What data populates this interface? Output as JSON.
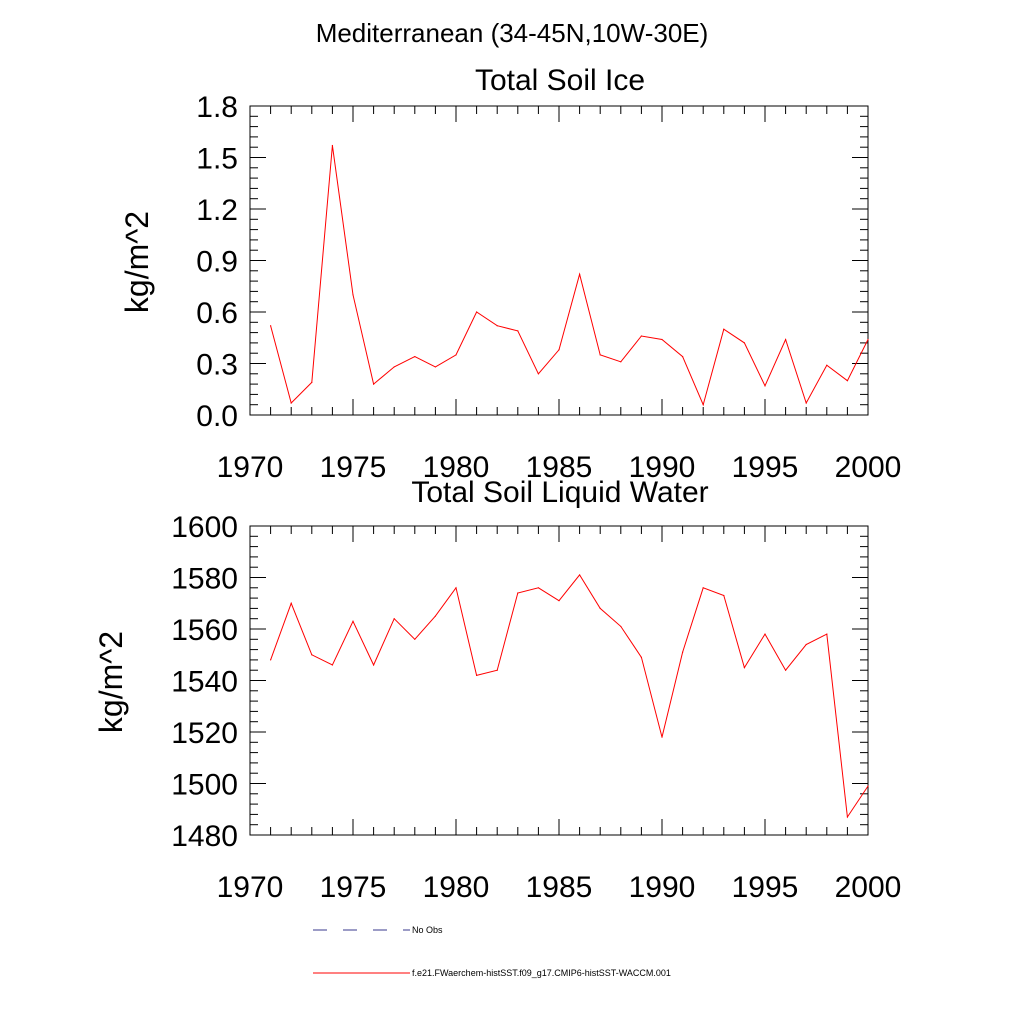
{
  "page_title": "Mediterranean (34-45N,10W-30E)",
  "chart_data": [
    {
      "type": "line",
      "title": "Total Soil Ice",
      "ylabel": "kg/m^2",
      "xlabel": "",
      "xlim": [
        1970,
        2000
      ],
      "ylim": [
        0.0,
        1.8
      ],
      "x_ticks": [
        1970,
        1975,
        1980,
        1985,
        1990,
        1995,
        2000
      ],
      "x_tick_labels": [
        "1970",
        "1975",
        "1980",
        "1985",
        "1990",
        "1995",
        "2000"
      ],
      "y_ticks": [
        0.0,
        0.3,
        0.6,
        0.9,
        1.2,
        1.5,
        1.8
      ],
      "y_tick_labels": [
        "0.0",
        "0.3",
        "0.6",
        "0.9",
        "1.2",
        "1.5",
        "1.8"
      ],
      "x": [
        1971,
        1972,
        1973,
        1974,
        1975,
        1976,
        1977,
        1978,
        1979,
        1980,
        1981,
        1982,
        1983,
        1984,
        1985,
        1986,
        1987,
        1988,
        1989,
        1990,
        1991,
        1992,
        1993,
        1994,
        1995,
        1996,
        1997,
        1998,
        1999,
        2000
      ],
      "series": [
        {
          "name": "f.e21.FWaerchem-histSST.f09_g17.CMIP6-histSST-WACCM.001",
          "color": "#ff0000",
          "values": [
            0.52,
            0.07,
            0.19,
            1.57,
            0.7,
            0.18,
            0.28,
            0.34,
            0.28,
            0.35,
            0.6,
            0.52,
            0.49,
            0.24,
            0.38,
            0.82,
            0.35,
            0.31,
            0.46,
            0.44,
            0.34,
            0.06,
            0.5,
            0.42,
            0.17,
            0.44,
            0.07,
            0.29,
            0.2,
            0.44
          ]
        }
      ]
    },
    {
      "type": "line",
      "title": "Total Soil Liquid Water",
      "ylabel": "kg/m^2",
      "xlabel": "",
      "xlim": [
        1970,
        2000
      ],
      "ylim": [
        1480,
        1600
      ],
      "x_ticks": [
        1970,
        1975,
        1980,
        1985,
        1990,
        1995,
        2000
      ],
      "x_tick_labels": [
        "1970",
        "1975",
        "1980",
        "1985",
        "1990",
        "1995",
        "2000"
      ],
      "y_ticks": [
        1480,
        1500,
        1520,
        1540,
        1560,
        1580,
        1600
      ],
      "y_tick_labels": [
        "1480",
        "1500",
        "1520",
        "1540",
        "1560",
        "1580",
        "1600"
      ],
      "x": [
        1971,
        1972,
        1973,
        1974,
        1975,
        1976,
        1977,
        1978,
        1979,
        1980,
        1981,
        1982,
        1983,
        1984,
        1985,
        1986,
        1987,
        1988,
        1989,
        1990,
        1991,
        1992,
        1993,
        1994,
        1995,
        1996,
        1997,
        1998,
        1999,
        2000
      ],
      "series": [
        {
          "name": "f.e21.FWaerchem-histSST.f09_g17.CMIP6-histSST-WACCM.001",
          "color": "#ff0000",
          "values": [
            1548,
            1570,
            1550,
            1546,
            1563,
            1546,
            1564,
            1556,
            1565,
            1576,
            1542,
            1544,
            1574,
            1576,
            1571,
            1581,
            1568,
            1561,
            1549,
            1518,
            1551,
            1576,
            1573,
            1545,
            1558,
            1544,
            1554,
            1558,
            1487,
            1499
          ]
        }
      ]
    }
  ],
  "legend": [
    {
      "label": "No Obs",
      "color": "#3a3a8c",
      "style": "dashed"
    },
    {
      "label": "f.e21.FWaerchem-histSST.f09_g17.CMIP6-histSST-WACCM.001",
      "color": "#ff0000",
      "style": "solid"
    }
  ]
}
